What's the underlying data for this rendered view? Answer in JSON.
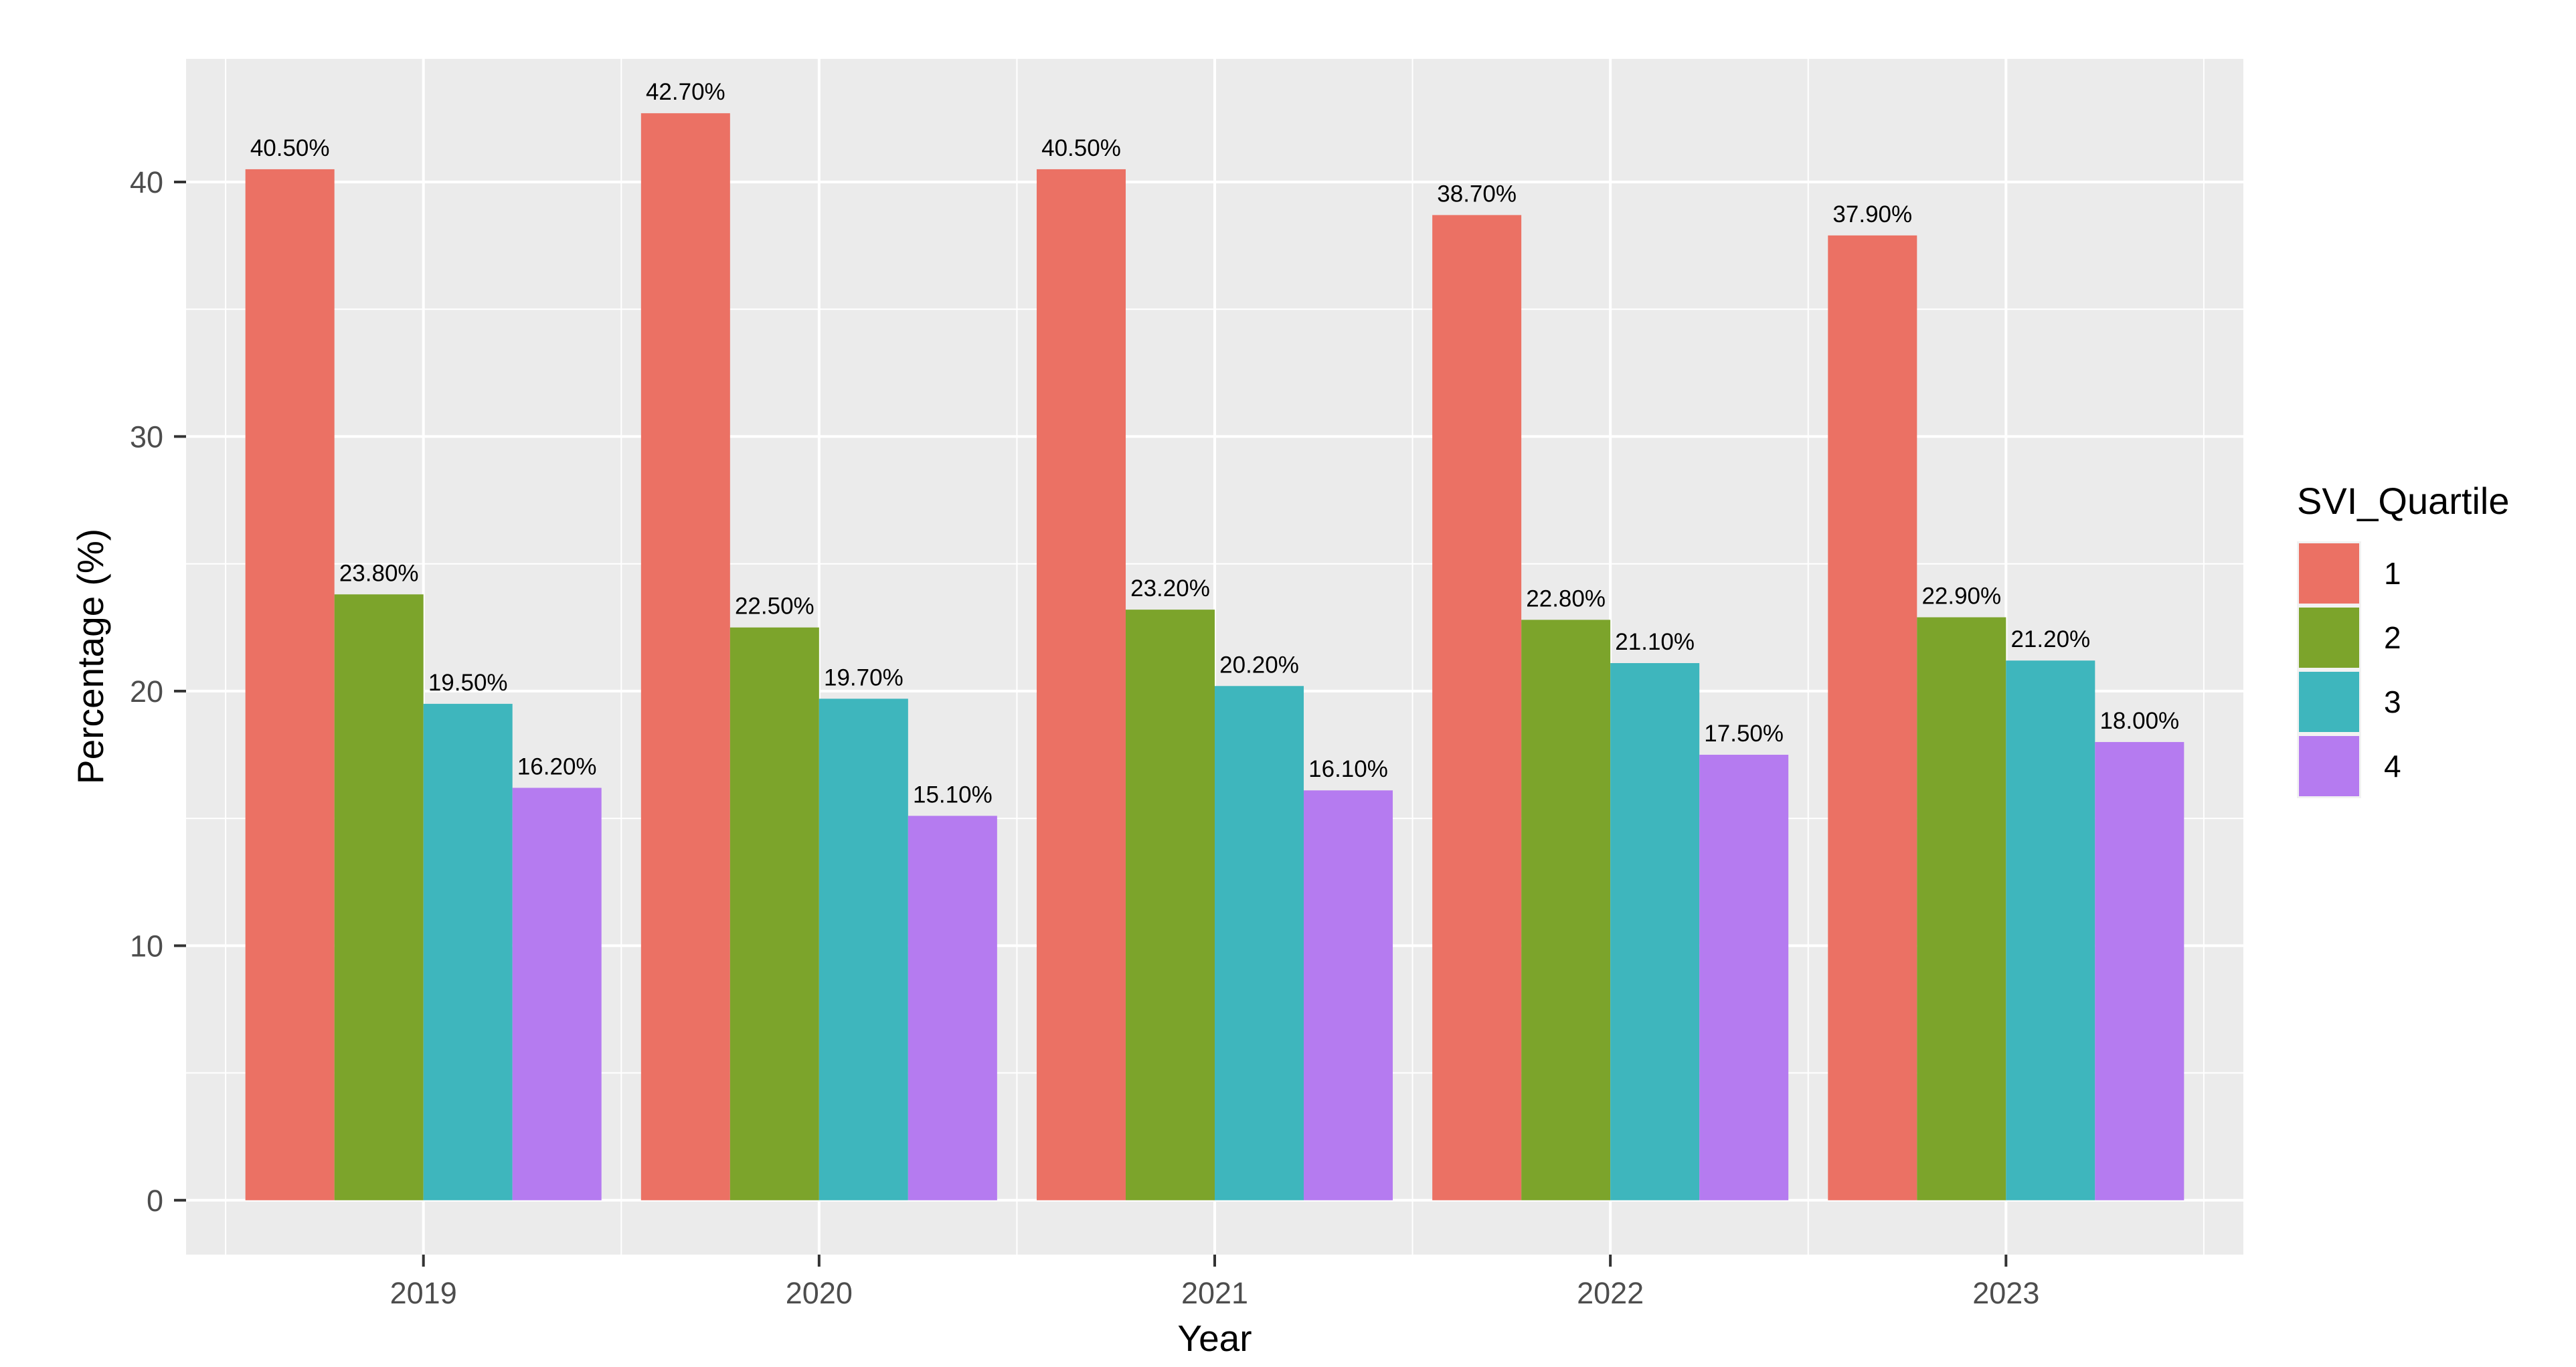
{
  "figure": {
    "background": "#FFFFFF"
  },
  "panel": {
    "background": "#EBEBEB",
    "grid_major_color": "#FFFFFF",
    "grid_minor_color": "#FFFFFF",
    "tick_color": "#333333",
    "tick_label_color": "#4D4D4D"
  },
  "axes": {
    "x": {
      "title": "Year",
      "tick_labels": [
        "2019",
        "2020",
        "2021",
        "2022",
        "2023"
      ]
    },
    "y": {
      "title": "Percentage (%)",
      "tick_labels": [
        "0",
        "10",
        "20",
        "30",
        "40"
      ]
    }
  },
  "legend": {
    "title": "SVI_Quartile",
    "position": "right",
    "items": [
      {
        "label": "1",
        "color": "#EB7164"
      },
      {
        "label": "2",
        "color": "#7CA42B"
      },
      {
        "label": "3",
        "color": "#3EB6BD"
      },
      {
        "label": "4",
        "color": "#B57BF0"
      }
    ]
  },
  "chart_data": {
    "type": "bar",
    "title": "",
    "xlabel": "Year",
    "ylabel": "Percentage (%)",
    "categories": [
      "2019",
      "2020",
      "2021",
      "2022",
      "2023"
    ],
    "series": [
      {
        "name": "1",
        "color": "#EB7164",
        "values": [
          40.5,
          42.7,
          40.5,
          38.7,
          37.9
        ],
        "value_labels": [
          "40.50%",
          "42.70%",
          "40.50%",
          "38.70%",
          "37.90%"
        ]
      },
      {
        "name": "2",
        "color": "#7CA42B",
        "values": [
          23.8,
          22.5,
          23.2,
          22.8,
          22.9
        ],
        "value_labels": [
          "23.80%",
          "22.50%",
          "23.20%",
          "22.80%",
          "22.90%"
        ]
      },
      {
        "name": "3",
        "color": "#3EB6BD",
        "values": [
          19.5,
          19.7,
          20.2,
          21.1,
          21.2
        ],
        "value_labels": [
          "19.50%",
          "19.70%",
          "20.20%",
          "21.10%",
          "21.20%"
        ]
      },
      {
        "name": "4",
        "color": "#B57BF0",
        "values": [
          16.2,
          15.1,
          16.1,
          17.5,
          18.0
        ],
        "value_labels": [
          "16.20%",
          "15.10%",
          "16.10%",
          "17.50%",
          "18.00%"
        ]
      }
    ],
    "y_ticks": [
      0,
      10,
      20,
      30,
      40
    ],
    "y_minor_ticks": [
      5,
      15,
      25,
      35
    ],
    "ylim": [
      -2.135,
      44.835
    ],
    "grid": true,
    "legend_title": "SVI_Quartile",
    "legend_position": "right",
    "bar_group_width": 0.9
  }
}
